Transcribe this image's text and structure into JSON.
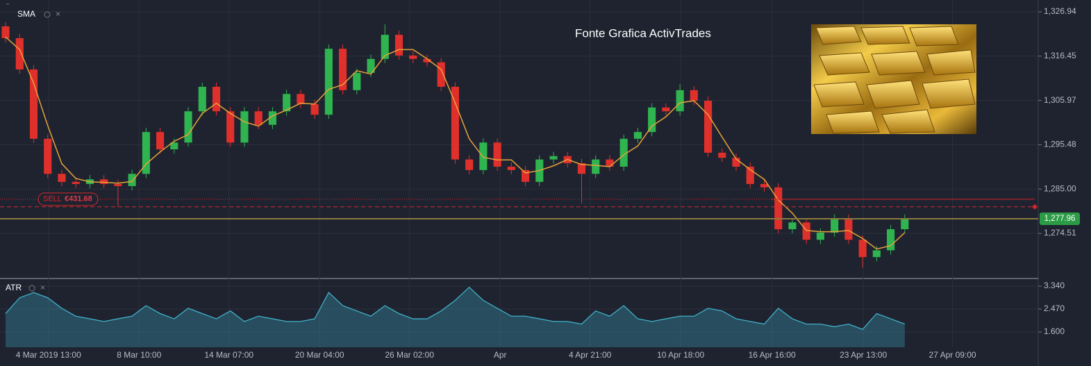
{
  "chart_data": [
    {
      "type": "candlestick",
      "annotation": "Fonte Grafica ActivTrades",
      "up_color": "#2fb44f",
      "down_color": "#e0302b",
      "open": [
        1323.5,
        1320.7,
        1313.3,
        1296.9,
        1288.6,
        1286.7,
        1286.2,
        1287.3,
        1286.2,
        1285.7,
        1288.6,
        1298.5,
        1294.4,
        1296.0,
        1303.4,
        1309.2,
        1303.4,
        1296.0,
        1303.4,
        1300.2,
        1303.4,
        1307.5,
        1305.1,
        1302.6,
        1318.2,
        1308.4,
        1312.5,
        1315.8,
        1321.5,
        1316.6,
        1315.8,
        1315.0,
        1309.2,
        1292.0,
        1289.5,
        1296.0,
        1290.3,
        1289.5,
        1286.7,
        1292.0,
        1292.8,
        1291.1,
        1288.6,
        1292.0,
        1290.3,
        1296.9,
        1298.5,
        1304.3,
        1303.4,
        1308.4,
        1305.9,
        1293.6,
        1292.4,
        1290.3,
        1286.2,
        1285.4,
        1275.5,
        1277.1,
        1273.0,
        1274.7,
        1278.0,
        1273.0,
        1268.9,
        1270.5,
        1275.5
      ],
      "high": [
        1324.5,
        1321.7,
        1314.3,
        1297.9,
        1289.6,
        1287.7,
        1288.3,
        1288.3,
        1287.2,
        1289.6,
        1299.5,
        1299.5,
        1297.0,
        1304.4,
        1310.2,
        1310.2,
        1304.4,
        1304.4,
        1304.4,
        1304.4,
        1308.5,
        1308.5,
        1306.1,
        1319.2,
        1319.2,
        1313.5,
        1316.8,
        1324.0,
        1322.5,
        1317.6,
        1316.8,
        1316.0,
        1310.2,
        1293.0,
        1297.0,
        1297.0,
        1291.3,
        1290.5,
        1293.0,
        1293.8,
        1293.8,
        1292.1,
        1293.0,
        1293.0,
        1297.9,
        1299.5,
        1305.3,
        1305.3,
        1309.8,
        1309.4,
        1306.9,
        1294.6,
        1293.4,
        1291.3,
        1287.2,
        1286.4,
        1278.1,
        1278.1,
        1275.7,
        1279.0,
        1279.0,
        1274.0,
        1271.5,
        1276.5,
        1279.0
      ],
      "low": [
        1319.7,
        1312.3,
        1295.9,
        1287.6,
        1285.7,
        1285.2,
        1285.2,
        1285.2,
        1280.9,
        1284.7,
        1287.6,
        1293.4,
        1293.4,
        1295.0,
        1302.4,
        1302.4,
        1295.0,
        1295.0,
        1299.2,
        1299.2,
        1302.4,
        1304.1,
        1301.6,
        1301.6,
        1307.4,
        1307.4,
        1311.5,
        1314.8,
        1315.6,
        1314.8,
        1314.0,
        1308.2,
        1291.0,
        1288.5,
        1288.5,
        1289.3,
        1288.5,
        1285.7,
        1285.7,
        1291.0,
        1290.1,
        1281.6,
        1287.6,
        1289.3,
        1289.3,
        1295.9,
        1297.5,
        1302.4,
        1302.4,
        1304.9,
        1292.6,
        1291.4,
        1289.3,
        1285.2,
        1284.4,
        1274.5,
        1274.5,
        1272.0,
        1272.0,
        1273.7,
        1272.0,
        1266.4,
        1267.9,
        1269.5,
        1274.5
      ],
      "close": [
        1320.7,
        1313.3,
        1296.9,
        1288.6,
        1286.7,
        1286.2,
        1287.3,
        1286.2,
        1285.7,
        1288.6,
        1298.5,
        1294.4,
        1296.0,
        1303.4,
        1309.2,
        1303.4,
        1296.0,
        1303.4,
        1300.2,
        1303.4,
        1307.5,
        1305.1,
        1302.6,
        1318.2,
        1308.4,
        1312.5,
        1315.8,
        1321.5,
        1316.6,
        1315.8,
        1315.0,
        1309.2,
        1292.0,
        1289.5,
        1296.0,
        1290.3,
        1289.5,
        1286.7,
        1292.0,
        1292.8,
        1291.1,
        1288.6,
        1292.0,
        1290.3,
        1296.9,
        1298.5,
        1304.3,
        1303.4,
        1308.4,
        1305.9,
        1293.6,
        1292.4,
        1290.3,
        1286.2,
        1285.4,
        1275.5,
        1277.1,
        1273.0,
        1274.7,
        1278.0,
        1273.0,
        1268.9,
        1270.5,
        1275.5,
        1277.96
      ],
      "series": [
        {
          "name": "SMA",
          "color": "#e8a33a",
          "values": [
            1321,
            1318,
            1310,
            1300,
            1291,
            1287.5,
            1286.7,
            1286.6,
            1286.4,
            1286.8,
            1290.9,
            1293.8,
            1296.3,
            1297.9,
            1302.9,
            1305.3,
            1302.9,
            1300.9,
            1299.9,
            1302.3,
            1303.7,
            1305.3,
            1305.1,
            1308.6,
            1309.7,
            1313.0,
            1312.2,
            1316.6,
            1318.0,
            1318.0,
            1315.8,
            1313.3,
            1305.4,
            1296.9,
            1292.5,
            1291.9,
            1291.9,
            1288.8,
            1289.4,
            1290.5,
            1292.0,
            1290.8,
            1290.6,
            1290.3,
            1293.1,
            1295.2,
            1299.9,
            1302.1,
            1305.4,
            1305.9,
            1302.6,
            1297.3,
            1292.1,
            1289.6,
            1287.3,
            1282.4,
            1279.3,
            1275.2,
            1274.9,
            1274.9,
            1275.2,
            1273.3,
            1270.8,
            1271.6,
            1274.7
          ]
        }
      ],
      "position": {
        "side": "SELL",
        "pnl": "€431.68",
        "price": 1282.6,
        "stop": 1280.8
      },
      "last_price": {
        "value": 1277.96,
        "label": "1,277.96"
      },
      "xlim": [
        -0.2,
        73.5
      ],
      "xticks": [
        {
          "value": 3.05,
          "label": "4 Mar 2019 13:00"
        },
        {
          "value": 9.5,
          "label": "8 Mar 10:00"
        },
        {
          "value": 15.9,
          "label": "14 Mar 07:00"
        },
        {
          "value": 22.35,
          "label": "20 Mar 04:00"
        },
        {
          "value": 28.75,
          "label": "26 Mar 02:00"
        },
        {
          "value": 35.2,
          "label": "Apr"
        },
        {
          "value": 41.6,
          "label": "4 Apr 21:00"
        },
        {
          "value": 48.05,
          "label": "10 Apr 18:00"
        },
        {
          "value": 54.55,
          "label": "16 Apr 16:00"
        },
        {
          "value": 61.05,
          "label": "23 Apr 13:00"
        },
        {
          "value": 67.4,
          "label": "27 Apr 09:00"
        }
      ],
      "ylim": [
        1264.0,
        1328.42
      ],
      "yticks": [
        {
          "value": 1326.94,
          "label": "1,326.94"
        },
        {
          "value": 1316.45,
          "label": "1,316.45"
        },
        {
          "value": 1305.97,
          "label": "1,305.97"
        },
        {
          "value": 1295.48,
          "label": "1,295.48"
        },
        {
          "value": 1285.0,
          "label": "1,285.00"
        },
        {
          "value": 1274.51,
          "label": "1,274.51"
        }
      ],
      "grid": true
    },
    {
      "type": "area",
      "series": [
        {
          "name": "ATR",
          "color": "#3fb1c9",
          "values": [
            2.3,
            2.9,
            3.1,
            2.9,
            2.5,
            2.2,
            2.1,
            2.0,
            2.1,
            2.2,
            2.6,
            2.3,
            2.1,
            2.5,
            2.3,
            2.1,
            2.4,
            2.0,
            2.2,
            2.1,
            2.0,
            2.0,
            2.1,
            3.1,
            2.6,
            2.4,
            2.2,
            2.6,
            2.3,
            2.1,
            2.1,
            2.4,
            2.8,
            3.3,
            2.8,
            2.5,
            2.2,
            2.2,
            2.1,
            2.0,
            2.0,
            1.9,
            2.4,
            2.2,
            2.6,
            2.1,
            2.0,
            2.1,
            2.2,
            2.2,
            2.5,
            2.4,
            2.1,
            2.0,
            1.9,
            2.5,
            2.1,
            1.9,
            1.9,
            1.8,
            1.9,
            1.7,
            2.3,
            2.1,
            1.9
          ]
        }
      ],
      "ylim": [
        1.02,
        3.5
      ],
      "yticks": [
        {
          "value": 3.34,
          "label": "3.340"
        },
        {
          "value": 2.47,
          "label": "2.470"
        },
        {
          "value": 1.6,
          "label": "1.600"
        }
      ],
      "grid": true
    }
  ]
}
